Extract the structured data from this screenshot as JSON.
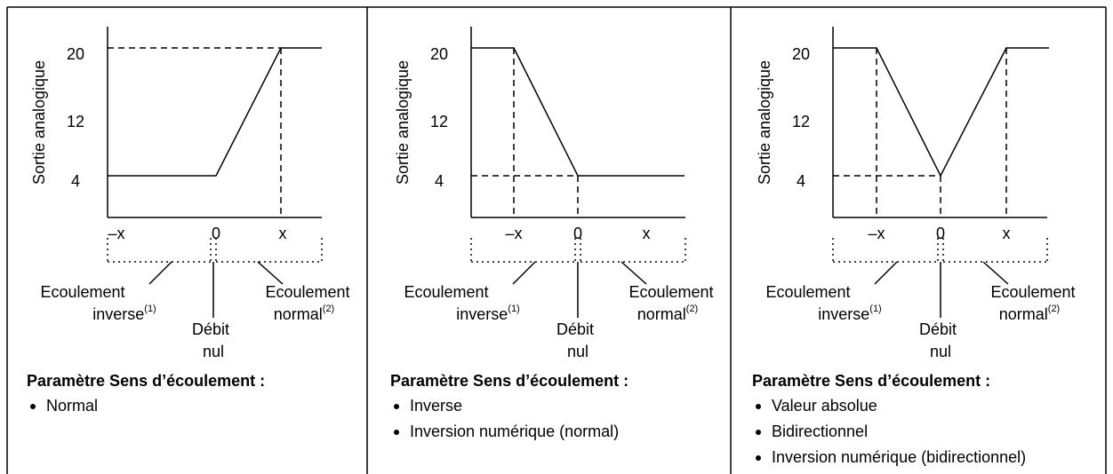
{
  "panels": [
    {
      "y_axis_label": "Sortie analogique",
      "y_ticks": [
        "20",
        "12",
        "4"
      ],
      "x_ticks": [
        "–x",
        "0",
        "x"
      ],
      "reverse_flow": [
        "Ecoulement",
        "inverse"
      ],
      "reverse_note": "(1)",
      "zero_flow": [
        "Débit",
        "nul"
      ],
      "forward_flow": [
        "Ecoulement",
        "normal"
      ],
      "forward_note": "(2)",
      "heading": "Paramètre Sens d’écoulement :",
      "options": [
        "Normal"
      ]
    },
    {
      "y_axis_label": "Sortie analogique",
      "y_ticks": [
        "20",
        "12",
        "4"
      ],
      "x_ticks": [
        "–x",
        "0",
        "x"
      ],
      "reverse_flow": [
        "Ecoulement",
        "inverse"
      ],
      "reverse_note": "(1)",
      "zero_flow": [
        "Débit",
        "nul"
      ],
      "forward_flow": [
        "Ecoulement",
        "normal"
      ],
      "forward_note": "(2)",
      "heading": "Paramètre Sens d’écoulement :",
      "options": [
        "Inverse",
        "Inversion numérique (normal)"
      ]
    },
    {
      "y_axis_label": "Sortie analogique",
      "y_ticks": [
        "20",
        "12",
        "4"
      ],
      "x_ticks": [
        "–x",
        "0",
        "x"
      ],
      "reverse_flow": [
        "Ecoulement",
        "inverse"
      ],
      "reverse_note": "(1)",
      "zero_flow": [
        "Débit",
        "nul"
      ],
      "forward_flow": [
        "Ecoulement",
        "normal"
      ],
      "forward_note": "(2)",
      "heading": "Paramètre Sens d’écoulement :",
      "options": [
        "Valeur absolue",
        "Bidirectionnel",
        "Inversion numérique (bidirectionnel)"
      ]
    }
  ]
}
